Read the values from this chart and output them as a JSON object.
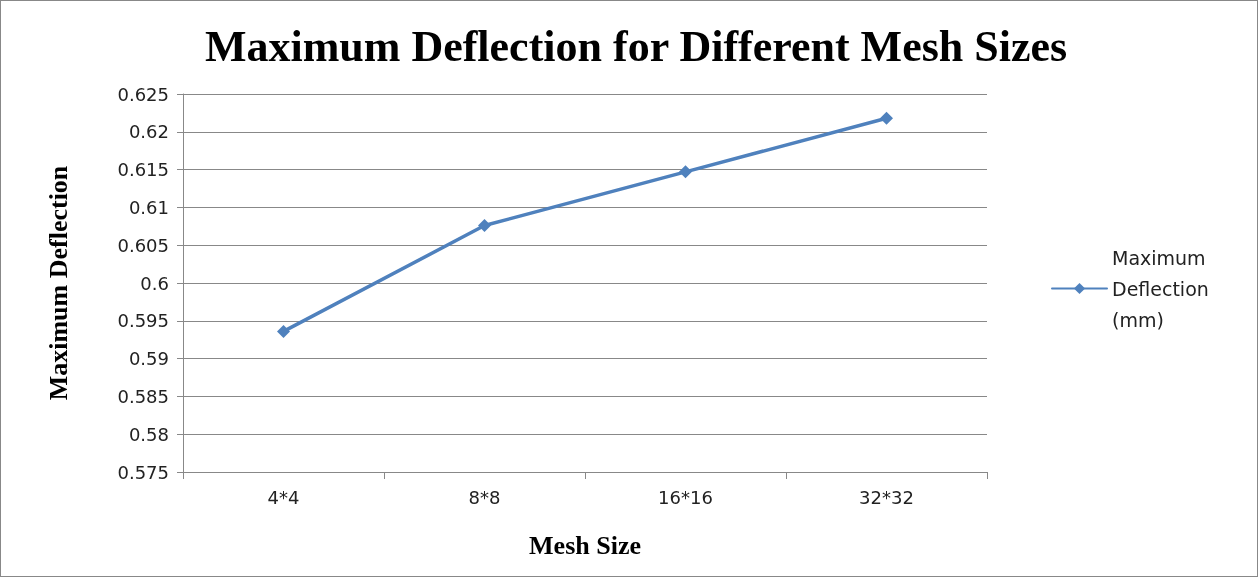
{
  "chart_data": {
    "type": "line",
    "title": "Maximum Deflection for Different Mesh Sizes",
    "xlabel": "Mesh Size",
    "ylabel": "Maximum Deflection",
    "categories": [
      "4*4",
      "8*8",
      "16*16",
      "32*32"
    ],
    "series": [
      {
        "name": "Maximum Deflection (mm)",
        "color": "#4f81bd",
        "values": [
          0.5936,
          0.6076,
          0.6147,
          0.6218
        ]
      }
    ],
    "ylim": [
      0.575,
      0.625
    ],
    "yticks": [
      0.575,
      0.58,
      0.585,
      0.59,
      0.595,
      0.6,
      0.605,
      0.61,
      0.615,
      0.62,
      0.625
    ],
    "grid": "y",
    "legend": "right",
    "marker": "diamond",
    "line_style": "solid"
  }
}
